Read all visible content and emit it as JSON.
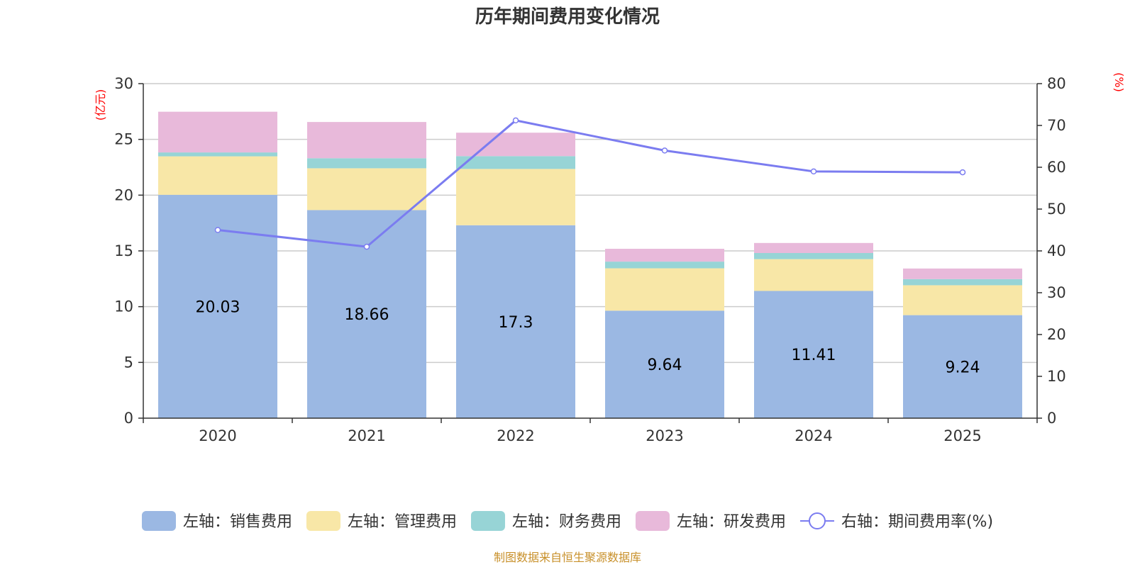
{
  "chart_data": {
    "type": "bar",
    "title": "历年期间费用变化情况",
    "categories": [
      "2020",
      "2021",
      "2022",
      "2023",
      "2024",
      "2025"
    ],
    "stacked": true,
    "left_axis": {
      "unit": "(亿元)",
      "min": 0,
      "max": 30,
      "ticks": [
        0,
        5,
        10,
        15,
        20,
        25,
        30
      ]
    },
    "right_axis": {
      "unit": "(%)",
      "min": 0,
      "max": 80,
      "ticks": [
        0,
        10,
        20,
        30,
        40,
        50,
        60,
        70,
        80
      ]
    },
    "series": [
      {
        "name": "左轴：销售费用",
        "type": "bar",
        "axis": "left",
        "color": "#9bb8e3",
        "values": [
          20.03,
          18.66,
          17.3,
          9.64,
          11.41,
          9.24
        ],
        "labels": [
          "20.03",
          "18.66",
          "17.3",
          "9.64",
          "11.41",
          "9.24"
        ]
      },
      {
        "name": "左轴：管理费用",
        "type": "bar",
        "axis": "left",
        "color": "#f8e7a7",
        "values": [
          3.45,
          3.75,
          5.05,
          3.8,
          2.85,
          2.68
        ]
      },
      {
        "name": "左轴：财务费用",
        "type": "bar",
        "axis": "left",
        "color": "#97d4d6",
        "values": [
          0.35,
          0.9,
          1.15,
          0.6,
          0.55,
          0.55
        ]
      },
      {
        "name": "左轴：研发费用",
        "type": "bar",
        "axis": "left",
        "color": "#e8b9da",
        "values": [
          3.65,
          3.25,
          2.1,
          1.15,
          0.9,
          0.95
        ]
      },
      {
        "name": "右轴：期间费用率(%)",
        "type": "line",
        "axis": "right",
        "color": "#7b7cf0",
        "values": [
          45.0,
          41.0,
          71.2,
          64.0,
          59.0,
          58.8
        ]
      }
    ],
    "grid": true,
    "legend_position": "bottom"
  },
  "source": "制图数据来自恒生聚源数据库"
}
